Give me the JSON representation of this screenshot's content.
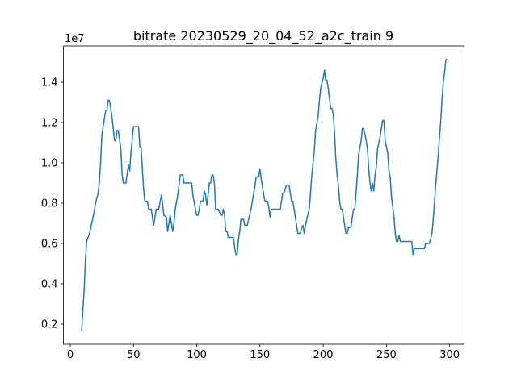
{
  "chart_data": {
    "type": "line",
    "title": "bitrate 20230529_20_04_52_a2c_train 9",
    "y_offset_label": "1e7",
    "x": [
      9,
      10,
      11,
      12,
      13,
      14,
      15,
      17,
      19,
      20,
      22,
      23,
      24,
      25,
      26,
      28,
      29,
      30,
      31,
      33,
      35,
      36,
      37,
      38,
      40,
      41,
      42,
      44,
      46,
      47,
      48,
      50,
      54,
      55,
      56,
      57,
      58,
      59,
      61,
      62,
      64,
      66,
      67,
      68,
      70,
      72,
      73,
      74,
      76,
      77,
      79,
      81,
      82,
      83,
      85,
      87,
      89,
      90,
      96,
      97,
      99,
      100,
      101,
      102,
      103,
      105,
      106,
      107,
      108,
      109,
      110,
      111,
      112,
      113,
      114,
      115,
      117,
      119,
      120,
      121,
      122,
      123,
      124,
      125,
      129,
      130,
      131,
      132,
      133,
      134,
      135,
      137,
      138,
      140,
      141,
      143,
      144,
      146,
      147,
      149,
      150,
      151,
      152,
      153,
      154,
      156,
      157,
      158,
      159,
      161,
      163,
      166,
      167,
      168,
      169,
      171,
      173,
      174,
      175,
      176,
      177,
      178,
      179,
      180,
      182,
      183,
      184,
      185,
      186,
      187,
      189,
      190,
      191,
      193,
      194,
      196,
      197,
      198,
      200,
      201,
      202,
      203,
      204,
      205,
      206,
      207,
      208,
      209,
      210,
      211,
      212,
      213,
      214,
      215,
      216,
      217,
      218,
      219,
      220,
      222,
      223,
      224,
      225,
      226,
      227,
      228,
      230,
      231,
      232,
      234,
      235,
      236,
      237,
      238,
      239,
      240,
      241,
      242,
      243,
      245,
      246,
      247,
      248,
      249,
      251,
      252,
      253,
      254,
      255,
      256,
      257,
      258,
      259,
      260,
      261,
      270,
      271,
      272,
      280,
      281,
      284,
      286,
      287,
      289,
      291,
      292,
      293,
      294,
      295,
      296,
      297,
      298
    ],
    "series": [
      {
        "name": "bitrate",
        "color": "#1f77b4",
        "values": [
          0.165,
          0.27,
          0.37,
          0.52,
          0.61,
          0.63,
          0.645,
          0.7,
          0.76,
          0.8,
          0.85,
          0.9,
          1.0,
          1.14,
          1.18,
          1.26,
          1.26,
          1.31,
          1.31,
          1.23,
          1.11,
          1.11,
          1.16,
          1.16,
          1.07,
          0.94,
          0.9,
          0.9,
          0.99,
          0.96,
          1.05,
          1.18,
          1.18,
          1.08,
          1.08,
          0.97,
          0.87,
          0.81,
          0.81,
          0.77,
          0.77,
          0.69,
          0.73,
          0.77,
          0.77,
          0.84,
          0.8,
          0.74,
          0.73,
          0.66,
          0.74,
          0.66,
          0.7,
          0.77,
          0.84,
          0.94,
          0.94,
          0.9,
          0.9,
          0.84,
          0.77,
          0.74,
          0.74,
          0.77,
          0.81,
          0.81,
          0.86,
          0.84,
          0.79,
          0.84,
          0.9,
          0.9,
          0.94,
          0.94,
          0.9,
          0.77,
          0.77,
          0.74,
          0.74,
          0.77,
          0.74,
          0.66,
          0.66,
          0.63,
          0.63,
          0.58,
          0.545,
          0.545,
          0.62,
          0.66,
          0.72,
          0.72,
          0.69,
          0.69,
          0.72,
          0.77,
          0.81,
          0.88,
          0.93,
          0.93,
          0.97,
          0.92,
          0.88,
          0.84,
          0.81,
          0.81,
          0.78,
          0.73,
          0.77,
          0.77,
          0.77,
          0.77,
          0.81,
          0.85,
          0.85,
          0.89,
          0.89,
          0.85,
          0.81,
          0.81,
          0.77,
          0.73,
          0.69,
          0.65,
          0.65,
          0.68,
          0.69,
          0.65,
          0.69,
          0.72,
          0.77,
          0.85,
          0.94,
          1.06,
          1.16,
          1.23,
          1.31,
          1.37,
          1.42,
          1.46,
          1.41,
          1.41,
          1.37,
          1.32,
          1.27,
          1.27,
          1.24,
          1.15,
          1.02,
          0.94,
          0.89,
          0.81,
          0.77,
          0.77,
          0.73,
          0.69,
          0.65,
          0.65,
          0.68,
          0.68,
          0.73,
          0.77,
          0.77,
          0.85,
          0.94,
          1.04,
          1.11,
          1.17,
          1.17,
          1.11,
          1.07,
          0.97,
          0.9,
          0.86,
          0.9,
          0.86,
          0.94,
          0.98,
          1.07,
          1.13,
          1.17,
          1.21,
          1.21,
          1.11,
          1.05,
          0.96,
          0.93,
          0.83,
          0.78,
          0.73,
          0.65,
          0.61,
          0.61,
          0.64,
          0.61,
          0.61,
          0.545,
          0.575,
          0.575,
          0.6,
          0.6,
          0.65,
          0.72,
          0.89,
          1.04,
          1.13,
          1.21,
          1.32,
          1.4,
          1.45,
          1.51,
          1.515
        ]
      }
    ],
    "xlim": [
      -5.4,
      311.4
    ],
    "ylim": [
      0.1,
      1.58
    ],
    "xticks": [
      0,
      50,
      100,
      150,
      200,
      250,
      300
    ],
    "yticks": [
      0.2,
      0.4,
      0.6,
      0.8,
      {
        "value": 1,
        "label": "1.0"
      },
      1.2,
      1.4
    ]
  }
}
